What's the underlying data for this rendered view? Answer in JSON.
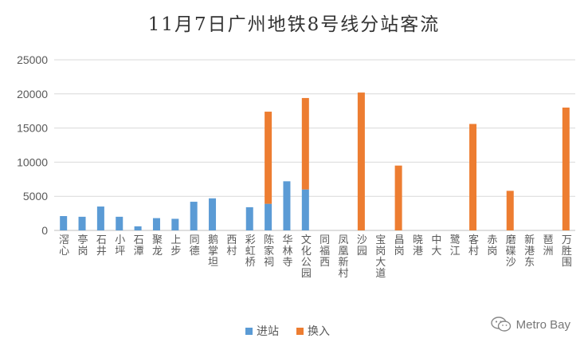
{
  "chart_data": {
    "type": "bar",
    "stacked": true,
    "title": "11月7日广州地铁8号线分站客流",
    "xlabel": "",
    "ylabel": "",
    "ylim": [
      0,
      25000
    ],
    "yticks": [
      "0",
      "5000",
      "10000",
      "15000",
      "20000",
      "25000"
    ],
    "grid": true,
    "legend_position": "bottom",
    "categories": [
      "滘心",
      "亭岗",
      "石井",
      "小坪",
      "石潭",
      "聚龙",
      "上步",
      "同德",
      "鹅掌坦",
      "西村",
      "彩虹桥",
      "陈家祠",
      "华林寺",
      "文化公园",
      "同福西",
      "凤凰新村",
      "沙园",
      "宝岗大道",
      "昌岗",
      "晓港",
      "中大",
      "鹭江",
      "客村",
      "赤岗",
      "磨碟沙",
      "新港东",
      "琶洲",
      "万胜围"
    ],
    "series": [
      {
        "name": "进站",
        "color": "#5B9BD5",
        "values": [
          2100,
          2000,
          3500,
          2000,
          600,
          1800,
          1700,
          4200,
          4700,
          0,
          3400,
          3900,
          7200,
          6000,
          0,
          0,
          0,
          0,
          0,
          0,
          0,
          0,
          0,
          0,
          0,
          0,
          0,
          0
        ]
      },
      {
        "name": "换入",
        "color": "#ED7D31",
        "values": [
          0,
          0,
          0,
          0,
          0,
          0,
          0,
          0,
          0,
          0,
          0,
          13500,
          0,
          13400,
          0,
          0,
          20200,
          0,
          9500,
          0,
          0,
          0,
          15600,
          0,
          5800,
          0,
          0,
          18000
        ]
      }
    ]
  },
  "watermark": {
    "text": "Metro Bay",
    "icon": "wechat-icon"
  }
}
